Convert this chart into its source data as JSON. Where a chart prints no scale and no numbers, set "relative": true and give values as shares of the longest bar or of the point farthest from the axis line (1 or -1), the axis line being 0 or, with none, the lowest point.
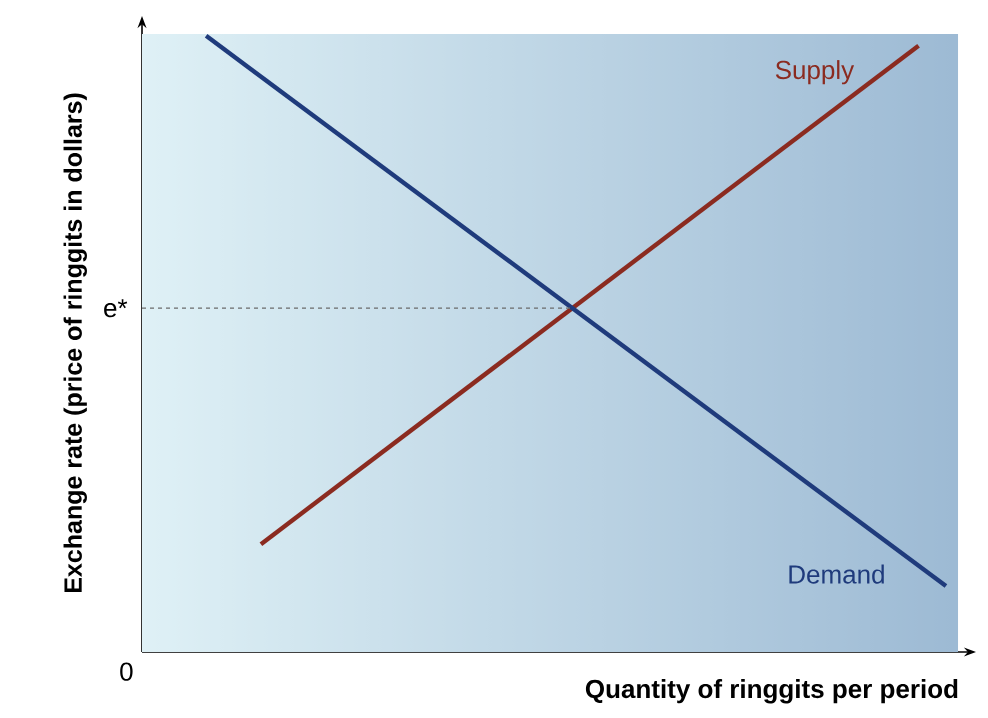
{
  "chart_data": {
    "type": "line",
    "relative": true,
    "xlabel": "Quantity of ringgits per period",
    "ylabel": "Exchange rate (price of ringgits in dollars)",
    "annotations": [
      "0"
    ],
    "categories": [
      null,
      null,
      null,
      null,
      null,
      null,
      null,
      null,
      null,
      null,
      null,
      null,
      null,
      null,
      null,
      null,
      null,
      null,
      null,
      null,
      null,
      null,
      null,
      null,
      null,
      null,
      null,
      null
    ],
    "series": [
      {
        "name": "Supply",
        "color": "#8b2b20",
        "values": [
          null,
          null,
          0.175,
          null,
          null,
          null,
          null,
          null,
          null,
          null,
          null,
          null,
          null,
          null,
          null,
          null,
          null,
          null,
          null,
          null,
          null,
          null,
          null,
          null,
          null,
          null,
          0.984,
          null
        ]
      },
      {
        "name": "Demand",
        "color": "#1f3b7c",
        "values": [
          1,
          null,
          null,
          null,
          null,
          null,
          null,
          null,
          null,
          null,
          null,
          null,
          null,
          null,
          null,
          null,
          null,
          null,
          null,
          null,
          null,
          null,
          null,
          null,
          null,
          null,
          null,
          0.107
        ]
      }
    ],
    "ref_lines": [
      {
        "axis": "y",
        "value": 0.558,
        "label": "e*",
        "color": "#6b6b6b",
        "line_style": "dashed"
      }
    ],
    "marker": "none",
    "line_style": "solid"
  }
}
